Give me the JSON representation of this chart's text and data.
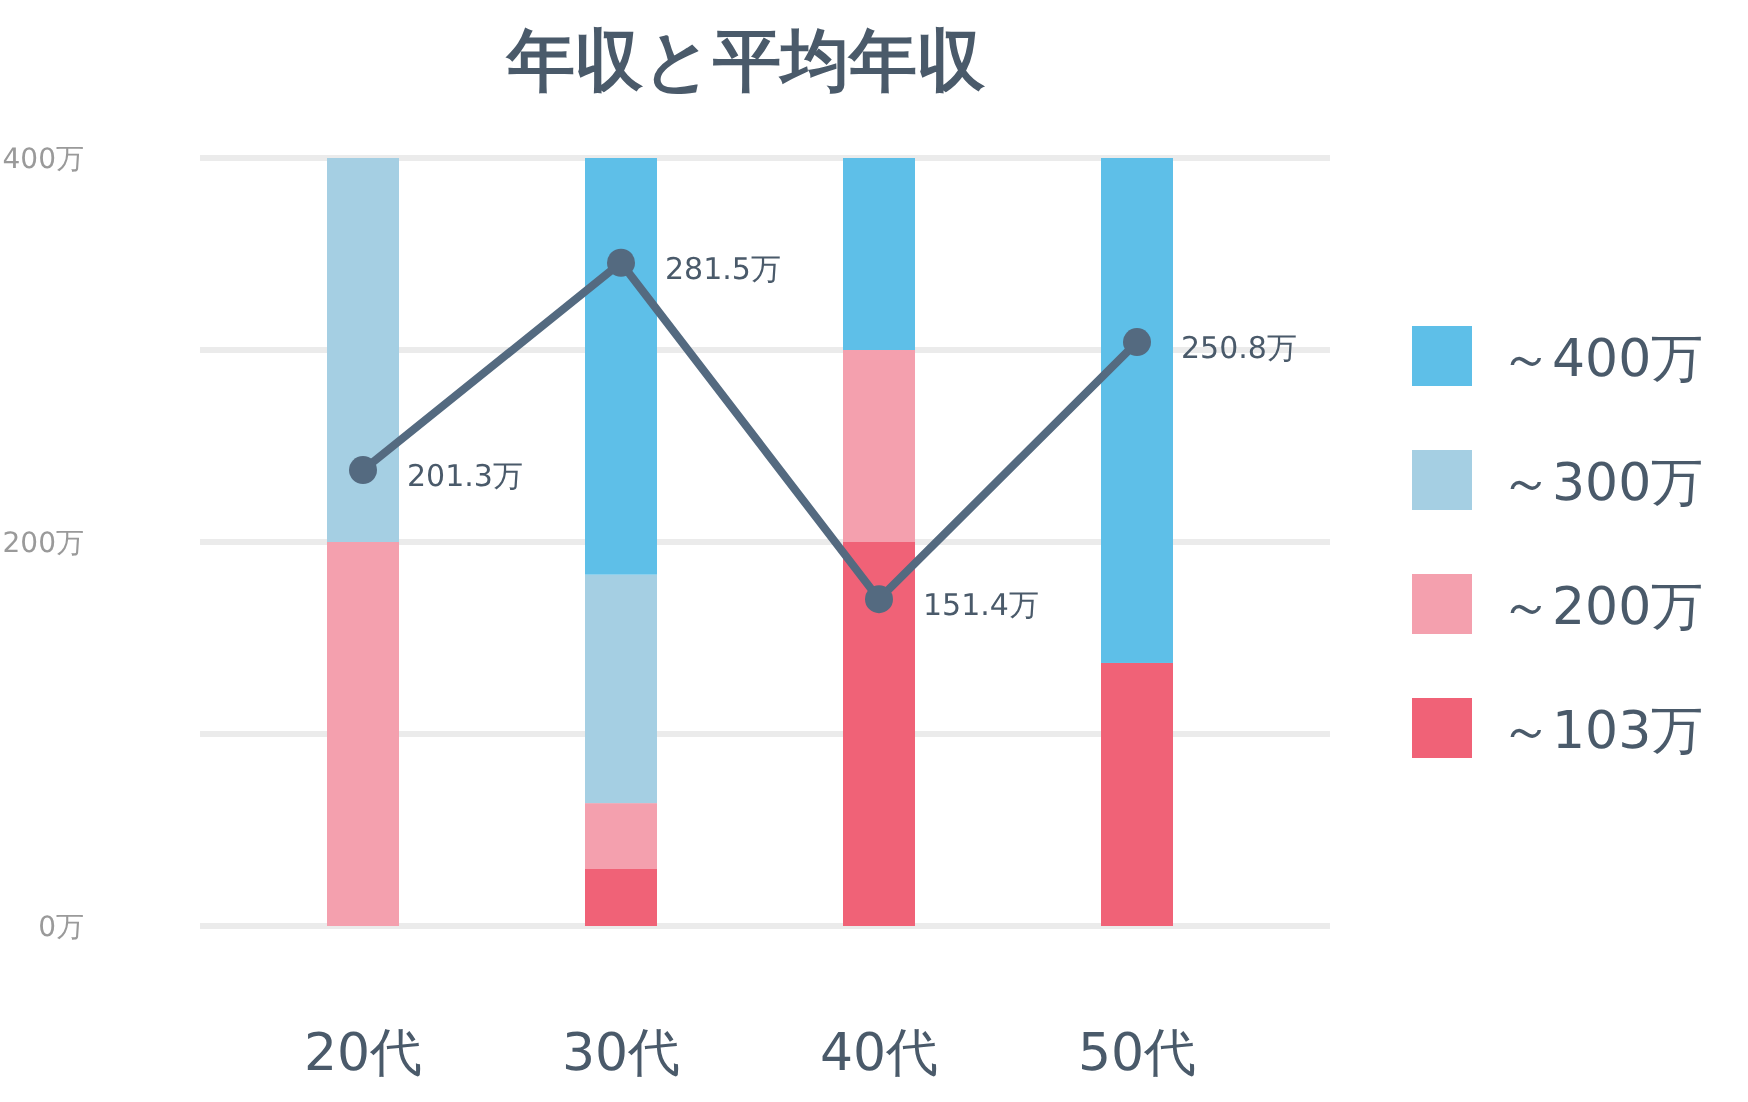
{
  "chart_data": {
    "type": "bar",
    "title": "年収と平均年収",
    "categories": [
      "20代",
      "30代",
      "40代",
      "50代"
    ],
    "stacked": true,
    "series": [
      {
        "name": "～103万",
        "color": "#f06277",
        "values": [
          null,
          30,
          200,
          137
        ]
      },
      {
        "name": "～200万",
        "color": "#f4a0ae",
        "values": [
          200,
          34,
          100,
          null
        ]
      },
      {
        "name": "～300万",
        "color": "#a5cfe3",
        "values": [
          200,
          119,
          null,
          null
        ]
      },
      {
        "name": "～400万",
        "color": "#5ebfe8",
        "values": [
          null,
          217,
          100,
          263
        ]
      },
      {
        "type": "line",
        "axis": "y2",
        "color": "#546a80",
        "marker": "circle",
        "values": [
          201.3,
          281.5,
          151.4,
          250.8
        ],
        "value_labels": [
          "201.3万",
          "281.5万",
          "151.4万",
          "250.8万"
        ]
      }
    ],
    "ylim": [
      0,
      400
    ],
    "yticks": [
      {
        "value": 0,
        "label": "0万"
      },
      {
        "value": 100,
        "label": null
      },
      {
        "value": 200,
        "label": "200万"
      },
      {
        "value": 300,
        "label": null
      },
      {
        "value": 400,
        "label": "400万"
      }
    ],
    "y2lim": [
      25,
      322
    ],
    "grid": "y",
    "legend": "right"
  }
}
